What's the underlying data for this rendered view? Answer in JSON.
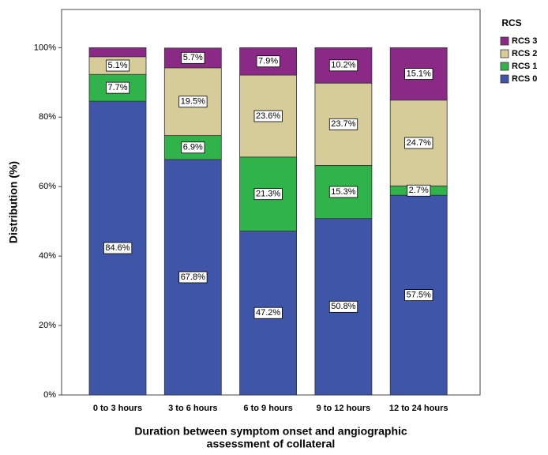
{
  "chart_data": {
    "type": "stacked_bar",
    "y_label": "Distribution (%)",
    "x_label": [
      "Duration between symptom onset and angiographic",
      "assessment of collateral"
    ],
    "legend_title": "RCS",
    "categories": [
      "0 to 3 hours",
      "3 to 6 hours",
      "6 to 9 hours",
      "9 to 12 hours",
      "12 to 24 hours"
    ],
    "series": [
      {
        "name": "RCS 0",
        "color": "#3f56a8",
        "values": [
          84.6,
          67.8,
          47.2,
          50.8,
          57.5
        ],
        "value_labels": [
          "84.6%",
          "67.8%",
          "47.2%",
          "50.8%",
          "57.5%"
        ]
      },
      {
        "name": "RCS 1",
        "color": "#2fb34a",
        "values": [
          7.7,
          6.9,
          21.3,
          15.3,
          2.7
        ],
        "value_labels": [
          "7.7%",
          "6.9%",
          "21.3%",
          "15.3%",
          "2.7%"
        ]
      },
      {
        "name": "RCS 2",
        "color": "#d6cc9a",
        "values": [
          5.1,
          19.5,
          23.6,
          23.7,
          24.7
        ],
        "value_labels": [
          "5.1%",
          "19.5%",
          "23.6%",
          "23.7%",
          "24.7%"
        ]
      },
      {
        "name": "RCS 3",
        "color": "#8a2a86",
        "values": [
          2.6,
          5.7,
          7.9,
          10.2,
          15.1
        ],
        "value_labels": [
          null,
          "5.7%",
          "7.9%",
          "10.2%",
          "15.1%"
        ]
      }
    ],
    "ylim": [
      0,
      111
    ],
    "yticks": [
      {
        "value": 0,
        "label": "0%"
      },
      {
        "value": 20,
        "label": "20%"
      },
      {
        "value": 40,
        "label": "40%"
      },
      {
        "value": 60,
        "label": "60%"
      },
      {
        "value": 80,
        "label": "80%"
      },
      {
        "value": 100,
        "label": "100%"
      }
    ],
    "legend_position": "right"
  }
}
